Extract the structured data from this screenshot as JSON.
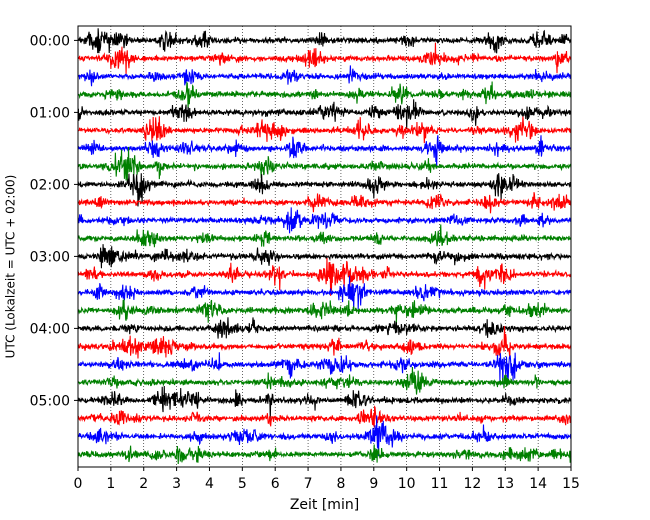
{
  "chart_data": {
    "type": "line",
    "title": "",
    "xlabel": "Zeit  [min]",
    "ylabel": "UTC (Lokalzeit = UTC + 02:00)",
    "xlim": [
      0,
      15
    ],
    "x_ticks": [
      0,
      1,
      2,
      3,
      4,
      5,
      6,
      7,
      8,
      9,
      10,
      11,
      12,
      13,
      14,
      15
    ],
    "x_tick_labels": [
      "0",
      "1",
      "2",
      "3",
      "4",
      "5",
      "6",
      "7",
      "8",
      "9",
      "10",
      "11",
      "12",
      "13",
      "14",
      "15"
    ],
    "y_tick_labels": [
      "00:00",
      "01:00",
      "02:00",
      "03:00",
      "04:00",
      "05:00"
    ],
    "trace_interval_min": 15,
    "trace_count": 24,
    "trace_colors": [
      "#000000",
      "#ff0000",
      "#0000ff",
      "#008000"
    ],
    "grid": {
      "x": true,
      "style": "dotted"
    },
    "legend": "none"
  }
}
